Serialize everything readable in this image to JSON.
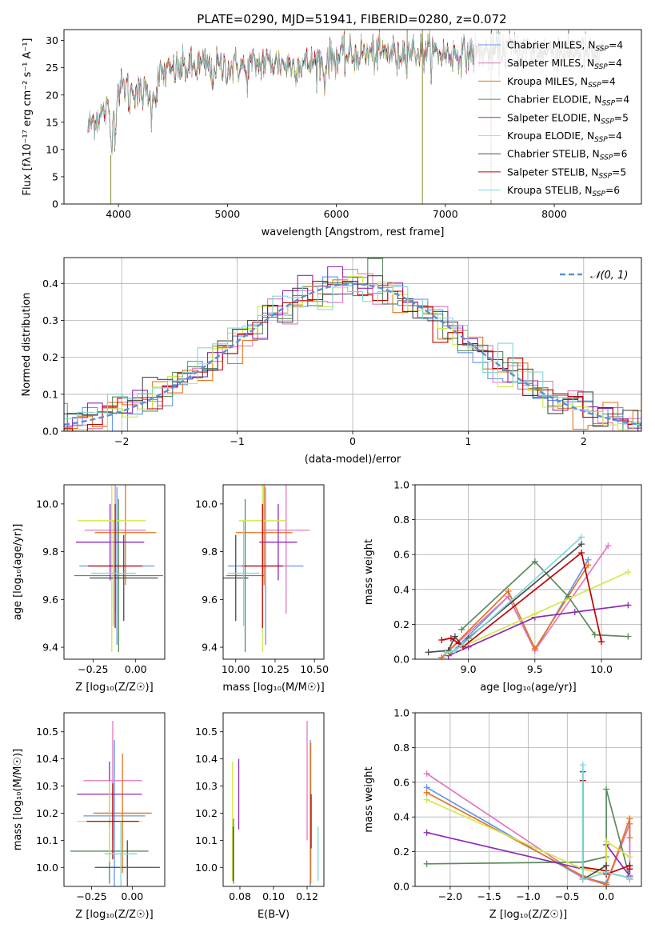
{
  "figure_title": "PLATE=0290, MJD=51941, FIBERID=0280, z=0.072",
  "colors": [
    "#6495ed",
    "#e377c2",
    "#e4761b",
    "#5b8b5e",
    "#8e2ab5",
    "#d2e84a",
    "#4a4a4a",
    "#c00000",
    "#7fd6d8"
  ],
  "legend": [
    "Chabrier MILES, N_SSP=4",
    "Salpeter MILES, N_SSP=4",
    "Kroupa MILES, N_SSP=4",
    "Chabrier ELODIE, N_SSP=4",
    "Salpeter ELODIE, N_SSP=5",
    "Kroupa ELODIE, N_SSP=4",
    "Chabrier STELIB, N_SSP=6",
    "Salpeter STELIB, N_SSP=5",
    "Kroupa STELIB, N_SSP=6"
  ],
  "chart_data": [
    {
      "id": "spectrum",
      "type": "line",
      "title": "PLATE=0290, MJD=51941, FIBERID=0280, z=0.072",
      "xlabel": "wavelength [Angstrom, rest frame]",
      "ylabel": "Flux [fλ10⁻¹⁷ erg cm⁻² s⁻¹ A⁻¹]",
      "xlim": [
        3500,
        8800
      ],
      "ylim": [
        0,
        32
      ],
      "xticks": [
        4000,
        5000,
        6000,
        7000,
        8000
      ],
      "yticks": [
        0,
        5,
        10,
        15,
        20,
        25,
        30
      ],
      "series_note": "9 overlapping model spectra, one per legend entry",
      "x": [
        3720,
        3800,
        3900,
        4000,
        4100,
        4200,
        4300,
        4400,
        4600,
        4800,
        5000,
        5200,
        5400,
        5600,
        5800,
        6000,
        6200,
        6400,
        6600,
        6800,
        7000,
        7200,
        7400,
        7600,
        7800,
        8000,
        8200,
        8450
      ],
      "values": [
        14,
        16,
        17,
        21,
        22,
        20,
        21,
        24,
        25,
        25.5,
        25,
        25.5,
        26,
        25.5,
        26,
        27,
        27.5,
        27.5,
        28,
        28,
        27.5,
        27.5,
        28,
        28.5,
        28,
        28,
        28,
        27
      ],
      "legend_position": "upper right"
    },
    {
      "id": "residuals",
      "type": "line",
      "xlabel": "(data-model)/error",
      "ylabel": "Normed distribution",
      "xlim": [
        -2.5,
        2.5
      ],
      "ylim": [
        0,
        0.47
      ],
      "xticks": [
        -2,
        -1,
        0,
        1,
        2
      ],
      "xticklabels": [
        "−2",
        "−1",
        "0",
        "1",
        "2"
      ],
      "yticks": [
        0,
        0.1,
        0.2,
        0.3,
        0.4
      ],
      "yticklabels": [
        "0.0",
        "0.1",
        "0.2",
        "0.3",
        "0.4"
      ],
      "series": [
        {
          "name": "𝒩(0, 1)",
          "style": "dashed",
          "color": "#5b8fd8"
        }
      ],
      "legend_position": "upper right",
      "grid": true
    },
    {
      "id": "age-vs-z",
      "type": "scatter",
      "xlabel": "Z [log₁₀(Z/Z☉)]",
      "ylabel": "age  [log₁₀(age/yr)]",
      "xlim": [
        -0.42,
        0.17
      ],
      "ylim": [
        9.35,
        10.08
      ],
      "xticks": [
        -0.25,
        0.0
      ],
      "xticklabels": [
        "−0.25",
        "0.00"
      ],
      "yticks": [
        9.4,
        9.6,
        9.8,
        10.0
      ],
      "yticklabels": [
        "9.4",
        "9.6",
        "9.8",
        "10.0"
      ],
      "points": [
        {
          "x": -0.11,
          "y": 9.74,
          "xerr": 0.22,
          "yerr": 0.33
        },
        {
          "x": -0.12,
          "y": 9.89,
          "xerr": 0.18,
          "yerr": 0.35
        },
        {
          "x": -0.06,
          "y": 9.88,
          "xerr": 0.18,
          "yerr": 0.22
        },
        {
          "x": -0.1,
          "y": 9.7,
          "xerr": 0.26,
          "yerr": 0.32
        },
        {
          "x": -0.15,
          "y": 9.84,
          "xerr": 0.2,
          "yerr": 0.16
        },
        {
          "x": -0.14,
          "y": 9.93,
          "xerr": 0.2,
          "yerr": 0.55
        },
        {
          "x": -0.07,
          "y": 9.69,
          "xerr": 0.2,
          "yerr": 0.18
        },
        {
          "x": -0.12,
          "y": 9.74,
          "xerr": 0.16,
          "yerr": 0.26
        },
        {
          "x": -0.13,
          "y": 9.71,
          "xerr": 0.13,
          "yerr": 0.22
        }
      ]
    },
    {
      "id": "age-vs-mass",
      "type": "scatter",
      "xlabel": "mass [log₁₀(M/M☉)]",
      "ylabel": "",
      "xlim": [
        9.92,
        10.56
      ],
      "ylim": [
        9.35,
        10.08
      ],
      "xticks": [
        10.0,
        10.25,
        10.5
      ],
      "xticklabels": [
        "10.00",
        "10.25",
        "10.50"
      ],
      "yticks": [
        9.4,
        9.6,
        9.8,
        10.0
      ],
      "yticklabels": [
        "9.4",
        "9.6",
        "9.8",
        "10.0"
      ],
      "points": [
        {
          "x": 10.19,
          "y": 9.74,
          "xerr": 0.24,
          "yerr": 0.33
        },
        {
          "x": 10.32,
          "y": 9.89,
          "xerr": 0.15,
          "yerr": 0.35
        },
        {
          "x": 10.18,
          "y": 9.88,
          "xerr": 0.18,
          "yerr": 0.22
        },
        {
          "x": 10.06,
          "y": 9.7,
          "xerr": 0.12,
          "yerr": 0.32
        },
        {
          "x": 10.27,
          "y": 9.84,
          "xerr": 0.12,
          "yerr": 0.16
        },
        {
          "x": 10.17,
          "y": 9.93,
          "xerr": 0.15,
          "yerr": 0.55
        },
        {
          "x": 10.0,
          "y": 9.69,
          "xerr": 0.08,
          "yerr": 0.18
        },
        {
          "x": 10.17,
          "y": 9.74,
          "xerr": 0.13,
          "yerr": 0.26
        },
        {
          "x": 10.05,
          "y": 9.71,
          "xerr": 0.1,
          "yerr": 0.22
        }
      ]
    },
    {
      "id": "mass-weight-vs-age",
      "type": "line",
      "xlabel": "age  [log₁₀(age/yr)]",
      "ylabel": "mass weight",
      "xlim": [
        8.6,
        10.3
      ],
      "ylim": [
        0,
        1
      ],
      "xticks": [
        9.0,
        9.5,
        10.0
      ],
      "xticklabels": [
        "9.0",
        "9.5",
        "10.0"
      ],
      "yticks": [
        0,
        0.2,
        0.4,
        0.6,
        0.8,
        1.0
      ],
      "yticklabels": [
        "0.0",
        "0.2",
        "0.4",
        "0.6",
        "0.8",
        "1.0"
      ],
      "grid": true,
      "series": [
        {
          "x": [
            8.85,
            9.3,
            9.5,
            9.9
          ],
          "values": [
            0.02,
            0.36,
            0.05,
            0.57
          ]
        },
        {
          "x": [
            8.8,
            9.3,
            9.5,
            10.05
          ],
          "values": [
            0.01,
            0.36,
            0.05,
            0.65
          ]
        },
        {
          "x": [
            8.8,
            9.3,
            9.5,
            9.9
          ],
          "values": [
            0.01,
            0.39,
            0.06,
            0.54
          ]
        },
        {
          "x": [
            8.95,
            9.5,
            9.75,
            9.95,
            10.2
          ],
          "values": [
            0.17,
            0.56,
            0.36,
            0.14,
            0.13
          ]
        },
        {
          "x": [
            8.85,
            9.0,
            9.5,
            9.8,
            10.2
          ],
          "values": [
            0.02,
            0.07,
            0.24,
            0.27,
            0.31
          ]
        },
        {
          "x": [
            8.85,
            8.95,
            9.5,
            10.2
          ],
          "values": [
            0.04,
            0.07,
            0.26,
            0.5
          ]
        },
        {
          "x": [
            8.7,
            8.85,
            8.9,
            8.95,
            9.0,
            9.85
          ],
          "values": [
            0.04,
            0.05,
            0.13,
            0.08,
            0.12,
            0.66
          ]
        },
        {
          "x": [
            8.8,
            8.87,
            8.93,
            8.96,
            9.85,
            10.0
          ],
          "values": [
            0.11,
            0.12,
            0.09,
            0.07,
            0.61,
            0.1
          ]
        },
        {
          "x": [
            8.83,
            8.9,
            8.95,
            9.85
          ],
          "values": [
            0.04,
            0.05,
            0.08,
            0.7
          ]
        }
      ]
    },
    {
      "id": "mass-vs-z",
      "type": "scatter",
      "xlabel": "Z [log₁₀(Z/Z☉)]",
      "ylabel": "mass [log₁₀(M/M☉)]",
      "xlim": [
        -0.42,
        0.2
      ],
      "ylim": [
        9.93,
        10.57
      ],
      "xticks": [
        -0.25,
        0.0
      ],
      "xticklabels": [
        "−0.25",
        "0.00"
      ],
      "yticks": [
        10.0,
        10.1,
        10.2,
        10.3,
        10.4,
        10.5
      ],
      "yticklabels": [
        "10.0",
        "10.1",
        "10.2",
        "10.3",
        "10.4",
        "10.5"
      ],
      "points": [
        {
          "x": -0.11,
          "y": 10.19,
          "xerr": 0.19,
          "yerr": 0.28
        },
        {
          "x": -0.12,
          "y": 10.32,
          "xerr": 0.18,
          "yerr": 0.22
        },
        {
          "x": -0.06,
          "y": 10.2,
          "xerr": 0.18,
          "yerr": 0.22
        },
        {
          "x": -0.14,
          "y": 10.06,
          "xerr": 0.24,
          "yerr": 0.12
        },
        {
          "x": -0.14,
          "y": 10.27,
          "xerr": 0.2,
          "yerr": 0.12
        },
        {
          "x": -0.14,
          "y": 10.17,
          "xerr": 0.2,
          "yerr": 0.15
        },
        {
          "x": -0.03,
          "y": 10.0,
          "xerr": 0.2,
          "yerr": 0.1
        },
        {
          "x": -0.12,
          "y": 10.17,
          "xerr": 0.16,
          "yerr": 0.14
        },
        {
          "x": -0.07,
          "y": 10.05,
          "xerr": 0.1,
          "yerr": 0.12
        }
      ]
    },
    {
      "id": "mass-vs-ebv",
      "type": "scatter",
      "xlabel": "E(B-V)",
      "ylabel": "",
      "xlim": [
        0.07,
        0.13
      ],
      "ylim": [
        9.93,
        10.57
      ],
      "xticks": [
        0.08,
        0.1,
        0.12
      ],
      "xticklabels": [
        "0.08",
        "0.10",
        "0.12"
      ],
      "yticks": [
        10.0,
        10.1,
        10.2,
        10.3,
        10.4,
        10.5
      ],
      "yticklabels": [
        "10.0",
        "10.1",
        "10.2",
        "10.3",
        "10.4",
        "10.5"
      ],
      "points": [
        {
          "x": 0.1219,
          "y": 10.19,
          "xerr": 0,
          "yerr": 0.28
        },
        {
          "x": 0.12,
          "y": 10.32,
          "xerr": 0,
          "yerr": 0.22
        },
        {
          "x": 0.1222,
          "y": 10.2,
          "xerr": 0,
          "yerr": 0.26
        },
        {
          "x": 0.0762,
          "y": 10.06,
          "xerr": 0,
          "yerr": 0.12
        },
        {
          "x": 0.0793,
          "y": 10.27,
          "xerr": 0,
          "yerr": 0.13
        },
        {
          "x": 0.0755,
          "y": 10.17,
          "xerr": 0,
          "yerr": 0.22
        },
        {
          "x": 0.076,
          "y": 10.05,
          "xerr": 0,
          "yerr": 0.1
        },
        {
          "x": 0.1224,
          "y": 10.17,
          "xerr": 0,
          "yerr": 0.1
        },
        {
          "x": 0.1265,
          "y": 10.05,
          "xerr": 0,
          "yerr": 0.1
        }
      ]
    },
    {
      "id": "mass-weight-vs-z",
      "type": "line",
      "xlabel": "Z [log₁₀(Z/Z☉)]",
      "ylabel": "mass weight",
      "xlim": [
        -2.45,
        0.45
      ],
      "ylim": [
        0,
        1
      ],
      "xticks": [
        -2.0,
        -1.5,
        -1.0,
        -0.5,
        0.0
      ],
      "xticklabels": [
        "−2.0",
        "−1.5",
        "−1.0",
        "−0.5",
        "0.0"
      ],
      "yticks": [
        0,
        0.2,
        0.4,
        0.6,
        0.8,
        1.0
      ],
      "yticklabels": [
        "0.0",
        "0.2",
        "0.4",
        "0.6",
        "0.8",
        "1.0"
      ],
      "grid": true,
      "series": [
        {
          "x": [
            -2.3,
            -0.3,
            0.0,
            0.3,
            0.3
          ],
          "values": [
            0.57,
            0.05,
            0.02,
            0.36,
            0.05
          ]
        },
        {
          "x": [
            -2.3,
            -0.3,
            0.0,
            0.3,
            0.3
          ],
          "values": [
            0.65,
            0.05,
            0.01,
            0.36,
            0.05
          ]
        },
        {
          "x": [
            -2.3,
            -0.3,
            0.0,
            0.3,
            0.3
          ],
          "values": [
            0.54,
            0.06,
            0.01,
            0.39,
            0.28
          ]
        },
        {
          "x": [
            -2.3,
            -0.3,
            0.0,
            0.0,
            0.3,
            0.3
          ],
          "values": [
            0.13,
            0.14,
            0.17,
            0.56,
            0.05,
            0.04
          ]
        },
        {
          "x": [
            -2.3,
            -0.3,
            0.0,
            0.0,
            0.3
          ],
          "values": [
            0.31,
            0.1,
            0.07,
            0.24,
            0.06
          ]
        },
        {
          "x": [
            -2.3,
            -0.3,
            0.0,
            0.0,
            0.3
          ],
          "values": [
            0.5,
            0.1,
            0.07,
            0.26,
            0.17
          ]
        },
        {
          "x": [
            -0.3,
            -0.3,
            0.0,
            0.0,
            0.3
          ],
          "values": [
            0.66,
            0.04,
            0.12,
            0.08,
            0.05
          ]
        },
        {
          "x": [
            -0.3,
            -0.3,
            0.0,
            0.0,
            0.3,
            0.3
          ],
          "values": [
            0.61,
            0.11,
            0.09,
            0.07,
            0.12,
            0.1
          ]
        },
        {
          "x": [
            -0.3,
            -0.3,
            0.0,
            0.3,
            0.3
          ],
          "values": [
            0.7,
            0.04,
            0.08,
            0.05,
            0.04
          ]
        }
      ]
    }
  ]
}
